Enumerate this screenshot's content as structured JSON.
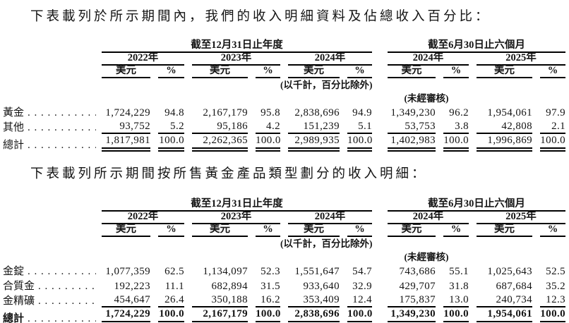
{
  "dot_leader": ". . . . . . . . . . . . . . . . . . . .",
  "paragraphs": {
    "p1": "下表載列於所示期間內，我們的收入明細資料及佔總收入百分比：",
    "p2": "下表載列所示期間按所售黃金產品類型劃分的收入明細："
  },
  "table_header": {
    "annual_group": "截至12月31日止年度",
    "interim_group": "截至6月30日止六個月",
    "years_annual": [
      "2022年",
      "2023年",
      "2024年"
    ],
    "years_interim": [
      "2024年",
      "2025年"
    ],
    "usd_label": "美元",
    "pct_label": "%",
    "units_note": "(以千計，百分比除外)",
    "unaudited_note": "(未經審核)"
  },
  "table1": {
    "rows": [
      {
        "label": "黃金",
        "values": [
          "1,724,229",
          "94.8",
          "2,167,179",
          "95.8",
          "2,838,696",
          "94.9",
          "1,349,230",
          "96.2",
          "1,954,061",
          "97.9"
        ]
      },
      {
        "label": "其他",
        "values": [
          "93,752",
          "5.2",
          "95,186",
          "4.2",
          "151,239",
          "5.1",
          "53,753",
          "3.8",
          "42,808",
          "2.1"
        ]
      },
      {
        "label": "總計",
        "values": [
          "1,817,981",
          "100.0",
          "2,262,365",
          "100.0",
          "2,989,935",
          "100.0",
          "1,402,983",
          "100.0",
          "1,996,869",
          "100.0"
        ]
      }
    ]
  },
  "table2": {
    "rows": [
      {
        "label": "金錠",
        "values": [
          "1,077,359",
          "62.5",
          "1,134,097",
          "52.3",
          "1,551,647",
          "54.7",
          "743,686",
          "55.1",
          "1,025,643",
          "52.5"
        ]
      },
      {
        "label": "合質金",
        "values": [
          "192,223",
          "11.1",
          "682,894",
          "31.5",
          "933,640",
          "32.9",
          "429,707",
          "31.8",
          "687,684",
          "35.2"
        ]
      },
      {
        "label": "金精礦",
        "values": [
          "454,647",
          "26.4",
          "350,188",
          "16.2",
          "353,409",
          "12.4",
          "175,837",
          "13.0",
          "240,734",
          "12.3"
        ]
      },
      {
        "label": "總計",
        "values": [
          "1,724,229",
          "100.0",
          "2,167,179",
          "100.0",
          "2,838,696",
          "100.0",
          "1,349,230",
          "100.0",
          "1,954,061",
          "100.0"
        ]
      }
    ]
  }
}
